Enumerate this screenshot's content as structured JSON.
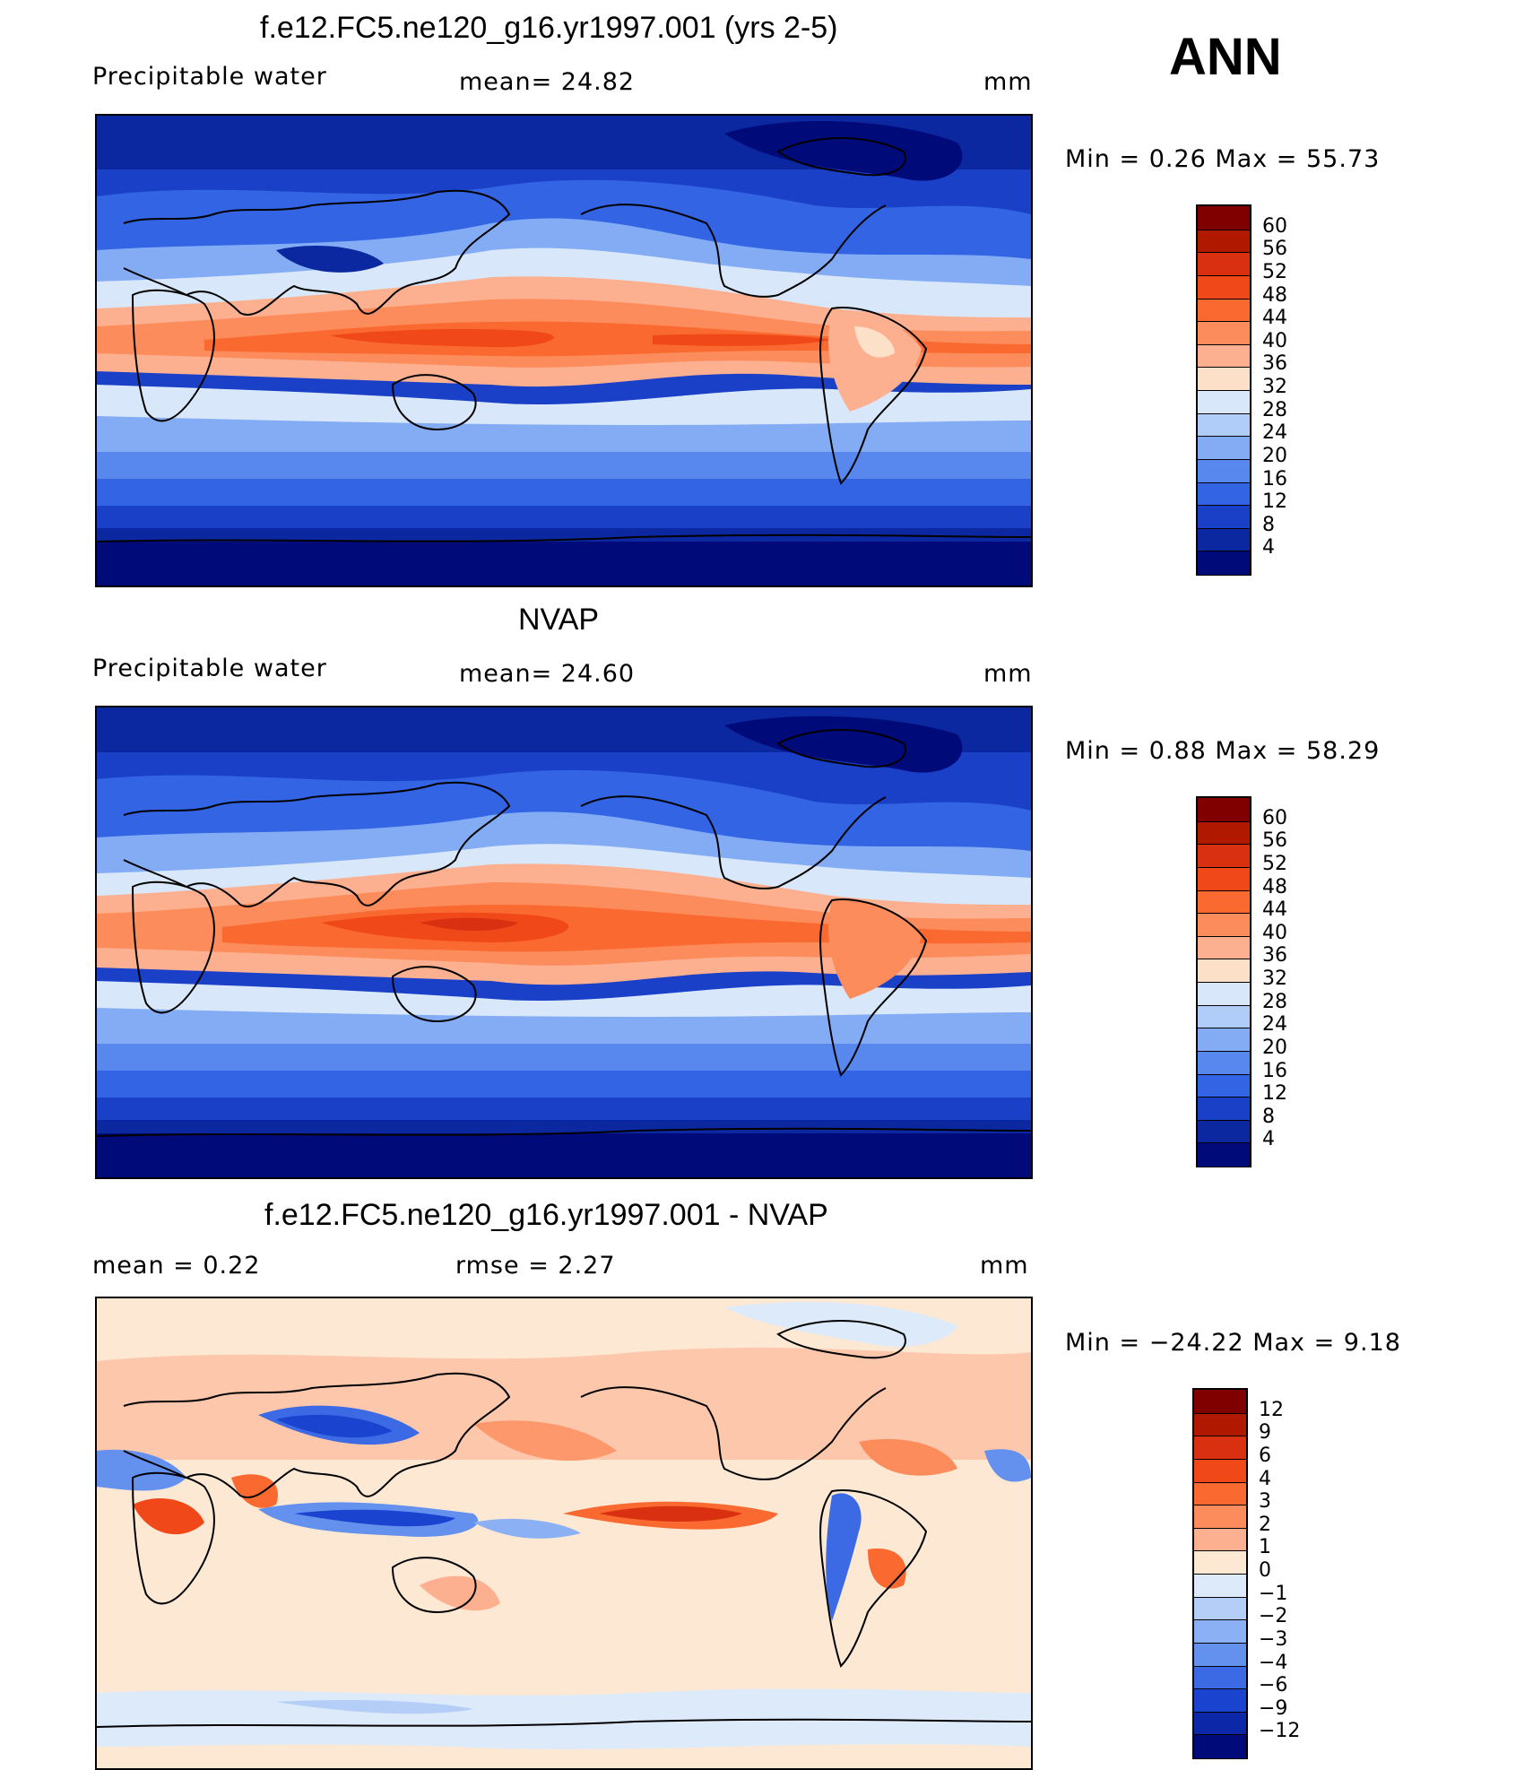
{
  "season": "ANN",
  "panels": [
    {
      "id": "model",
      "title": "f.e12.FC5.ne120_g16.yr1997.001 (yrs 2-5)",
      "left_label": "Precipitable  water",
      "center_label": "mean=   24.82",
      "units": "mm",
      "min_max": "Min  =     0.26  Max  =     55.73",
      "colorbar": {
        "labels": [
          "60",
          "56",
          "52",
          "48",
          "44",
          "40",
          "36",
          "32",
          "28",
          "24",
          "20",
          "16",
          "12",
          "8",
          "4"
        ],
        "colors": [
          "#800000",
          "#b01800",
          "#d83010",
          "#f04818",
          "#fa6a30",
          "#fc8c5c",
          "#fdb090",
          "#fde0c8",
          "#d8e8fa",
          "#b0ccf8",
          "#84acf4",
          "#5888ee",
          "#3264e4",
          "#1a40c8",
          "#0c28a0",
          "#000a78"
        ]
      }
    },
    {
      "id": "obs",
      "title": "NVAP",
      "left_label": "Precipitable  water",
      "center_label": "mean=   24.60",
      "units": "mm",
      "min_max": "Min  =     0.88  Max  =     58.29",
      "colorbar": {
        "labels": [
          "60",
          "56",
          "52",
          "48",
          "44",
          "40",
          "36",
          "32",
          "28",
          "24",
          "20",
          "16",
          "12",
          "8",
          "4"
        ],
        "colors": [
          "#800000",
          "#b01800",
          "#d83010",
          "#f04818",
          "#fa6a30",
          "#fc8c5c",
          "#fdb090",
          "#fde0c8",
          "#d8e8fa",
          "#b0ccf8",
          "#84acf4",
          "#5888ee",
          "#3264e4",
          "#1a40c8",
          "#0c28a0",
          "#000a78"
        ]
      }
    },
    {
      "id": "diff",
      "title": "f.e12.FC5.ne120_g16.yr1997.001 - NVAP",
      "left_label": "mean  =      0.22",
      "center_label": "rmse  =      2.27",
      "units": "mm",
      "min_max": "Min  = −24.22  Max  =       9.18",
      "colorbar": {
        "labels": [
          "12",
          "9",
          "6",
          "4",
          "3",
          "2",
          "1",
          "0",
          "−1",
          "−2",
          "−3",
          "−4",
          "−6",
          "−9",
          "−12"
        ],
        "colors": [
          "#800000",
          "#b01800",
          "#d83010",
          "#f04818",
          "#fa6a30",
          "#fc8c5c",
          "#fdb090",
          "#fde8d4",
          "#dceafa",
          "#b4cef8",
          "#8cb0f4",
          "#6490ee",
          "#3c6ae4",
          "#1a44d0",
          "#0c28a8",
          "#000a78"
        ]
      }
    }
  ],
  "colors": {
    "deep_blue": "#000a78",
    "mid_blue": "#3264e4",
    "light_blue": "#b0ccf8",
    "cream": "#fde0c8",
    "salmon": "#fc8c5c",
    "orange_red": "#f04818",
    "coast": "#000000"
  }
}
